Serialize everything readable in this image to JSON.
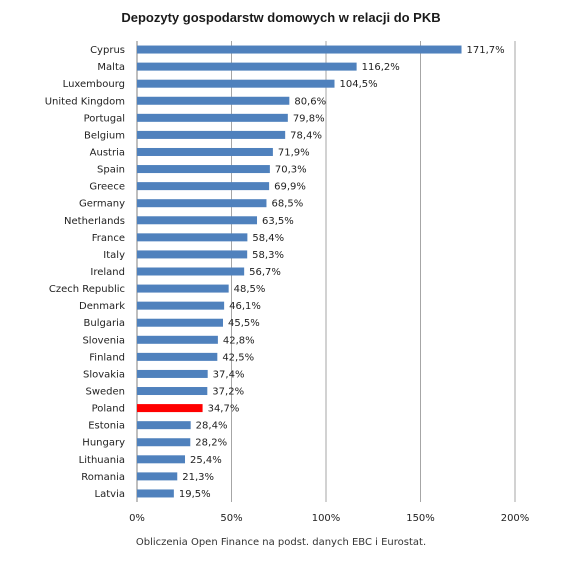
{
  "chart_data": {
    "type": "bar",
    "orientation": "horizontal",
    "title": "Depozyty gospodarstw domowych w relacji do PKB",
    "footer": "Obliczenia Open Finance na podst. danych EBC i Eurostat.",
    "categories": [
      "Cyprus",
      "Malta",
      "Luxembourg",
      "United Kingdom",
      "Portugal",
      "Belgium",
      "Austria",
      "Spain",
      "Greece",
      "Germany",
      "Netherlands",
      "France",
      "Italy",
      "Ireland",
      "Czech Republic",
      "Denmark",
      "Bulgaria",
      "Slovenia",
      "Finland",
      "Slovakia",
      "Sweden",
      "Poland",
      "Estonia",
      "Hungary",
      "Lithuania",
      "Romania",
      "Latvia"
    ],
    "values": [
      171.7,
      116.2,
      104.5,
      80.6,
      79.8,
      78.4,
      71.9,
      70.3,
      69.9,
      68.5,
      63.5,
      58.4,
      58.3,
      56.7,
      48.5,
      46.1,
      45.5,
      42.8,
      42.5,
      37.4,
      37.2,
      34.7,
      28.4,
      28.2,
      25.4,
      21.3,
      19.5
    ],
    "value_labels": [
      "171,7%",
      "116,2%",
      "104,5%",
      "80,6%",
      "79,8%",
      "78,4%",
      "71,9%",
      "70,3%",
      "69,9%",
      "68,5%",
      "63,5%",
      "58,4%",
      "58,3%",
      "56,7%",
      "48,5%",
      "46,1%",
      "45,5%",
      "42,8%",
      "42,5%",
      "37,4%",
      "37,2%",
      "34,7%",
      "28,4%",
      "28,2%",
      "25,4%",
      "21,3%",
      "19,5%"
    ],
    "xlim": [
      0,
      200
    ],
    "xticks": [
      0,
      50,
      100,
      150,
      200
    ],
    "xtick_labels": [
      "0%",
      "50%",
      "100%",
      "150%",
      "200%"
    ],
    "grid": "vertical",
    "colors": {
      "bar": "#4f81bd",
      "highlight": "#ff0000",
      "grid": "#a6a6a6",
      "axis": "#7f7f7f"
    },
    "highlight_category": "Poland"
  }
}
